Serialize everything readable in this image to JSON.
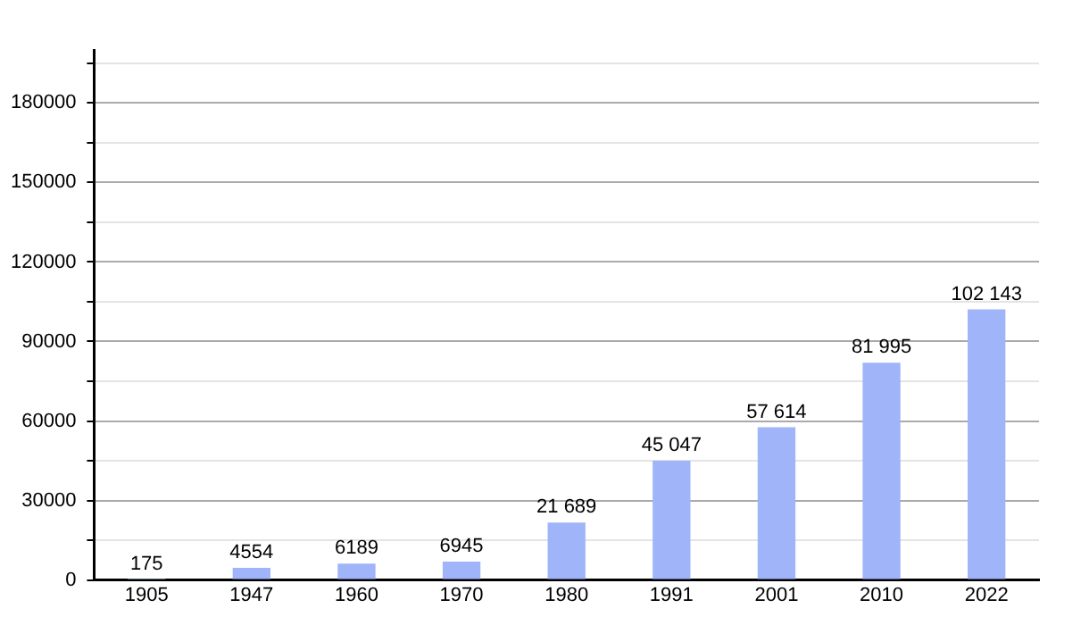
{
  "chart_data": {
    "type": "bar",
    "categories": [
      "1905",
      "1947",
      "1960",
      "1970",
      "1980",
      "1991",
      "2001",
      "2010",
      "2022"
    ],
    "values": [
      175,
      4554,
      6189,
      6945,
      21689,
      45047,
      57614,
      81995,
      102143
    ],
    "value_labels": [
      "175",
      "4554",
      "6189",
      "6945",
      "21 689",
      "45 047",
      "57 614",
      "81 995",
      "102 143"
    ],
    "color": "#a0b4fa",
    "ylim": [
      0,
      200000
    ],
    "yticks": [
      0,
      {
        "value": 15000,
        "label": null
      },
      30000,
      {
        "value": 45000,
        "label": null
      },
      60000,
      {
        "value": 75000,
        "label": null
      },
      90000,
      {
        "value": 105000,
        "label": null
      },
      120000,
      {
        "value": 135000,
        "label": null
      },
      150000,
      {
        "value": 165000,
        "label": null
      },
      180000,
      {
        "value": 195000,
        "label": null
      }
    ],
    "grid": "y"
  }
}
